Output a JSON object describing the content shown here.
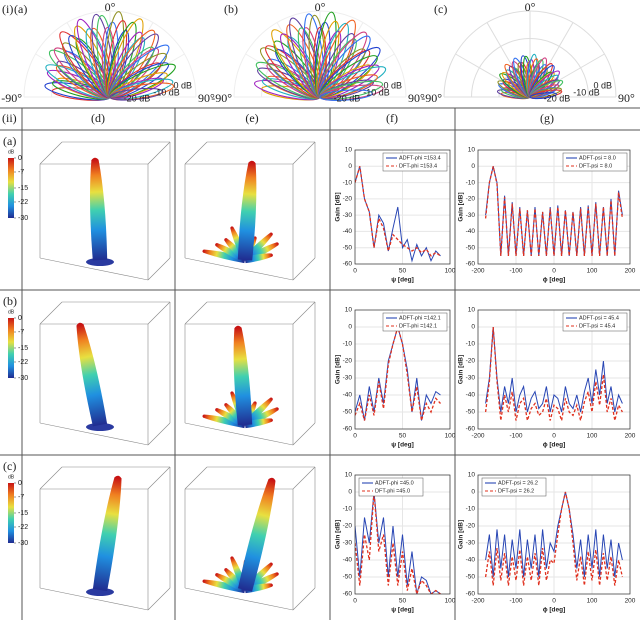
{
  "figure": {
    "part_i": "(i)",
    "part_ii": "(ii)",
    "columns": [
      "(d)",
      "(e)",
      "(f)",
      "(g)"
    ],
    "rows": [
      "(a)",
      "(b)",
      "(c)"
    ]
  },
  "colorbar": {
    "unit": "dB",
    "ticks": [
      0,
      -7,
      -15,
      -22,
      -30
    ]
  },
  "chart_data": [
    {
      "type": "polar",
      "label": "(a)",
      "top_label": "0°",
      "left_label": "-90°",
      "right_label": "90°",
      "ring_labels": [
        "0 dB",
        "-10 dB",
        "-20 dB"
      ]
    },
    {
      "type": "polar",
      "label": "(b)",
      "top_label": "0°",
      "left_label": "-90°",
      "right_label": "90°",
      "ring_labels": [
        "0 dB",
        "-10 dB",
        "-20 dB"
      ]
    },
    {
      "type": "polar",
      "label": "(c)",
      "top_label": "0°",
      "left_label": "-90°",
      "right_label": "90°",
      "ring_labels": [
        "0 dB",
        "-10 dB",
        "-20 dB"
      ]
    },
    {
      "type": "line",
      "xlabel": "ψ [deg]",
      "ylabel": "Gain [dB]",
      "xlim": [
        0,
        100
      ],
      "xticks": [
        0,
        50,
        100
      ],
      "ylim": [
        -60,
        10
      ],
      "yticks": [
        -60,
        -50,
        -40,
        -30,
        -20,
        -10,
        0,
        10
      ],
      "grid": true,
      "legend": "upper right",
      "x": [
        0,
        5,
        10,
        15,
        20,
        25,
        30,
        35,
        40,
        45,
        50,
        55,
        60,
        65,
        70,
        75,
        80,
        85,
        90
      ],
      "series": [
        {
          "name": "ADFT-phi =153.4",
          "color": "#2846b4",
          "dashed": false,
          "values": [
            -10,
            0,
            -20,
            -28,
            -50,
            -30,
            -35,
            -52,
            -38,
            -25,
            -50,
            -45,
            -58,
            -48,
            -55,
            -50,
            -58,
            -52,
            -55
          ]
        },
        {
          "name": "DFT-phi =153.4",
          "color": "#e0301e",
          "dashed": true,
          "values": [
            -10,
            0,
            -20,
            -28,
            -50,
            -32,
            -38,
            -52,
            -42,
            -45,
            -48,
            -50,
            -52,
            -50,
            -53,
            -51,
            -55,
            -53,
            -55
          ]
        }
      ]
    },
    {
      "type": "line",
      "xlabel": "ϕ [deg]",
      "ylabel": "Gain [dB]",
      "xlim": [
        -200,
        200
      ],
      "xticks": [
        -200,
        -100,
        0,
        100,
        200
      ],
      "ylim": [
        -60,
        10
      ],
      "yticks": [
        -60,
        -50,
        -40,
        -30,
        -20,
        -10,
        0,
        10
      ],
      "grid": true,
      "legend": "upper right",
      "x": [
        -180,
        -170,
        -160,
        -150,
        -140,
        -130,
        -120,
        -110,
        -100,
        -90,
        -80,
        -70,
        -60,
        -50,
        -40,
        -30,
        -20,
        -10,
        0,
        10,
        20,
        30,
        40,
        50,
        60,
        70,
        80,
        90,
        100,
        110,
        120,
        130,
        140,
        150,
        160,
        170,
        180
      ],
      "series": [
        {
          "name": "ADFT-psi = 8.0",
          "color": "#2846b4",
          "dashed": false,
          "values": [
            -30,
            -10,
            0,
            -10,
            -55,
            -18,
            -55,
            -22,
            -55,
            -25,
            -55,
            -27,
            -55,
            -25,
            -55,
            -28,
            -55,
            -25,
            -55,
            -24,
            -55,
            -27,
            -55,
            -28,
            -55,
            -25,
            -55,
            -24,
            -55,
            -22,
            -55,
            -25,
            -55,
            -20,
            -55,
            -15,
            -30
          ]
        },
        {
          "name": "DFT-psi = 8.0",
          "color": "#e0301e",
          "dashed": true,
          "values": [
            -32,
            -10,
            0,
            -11,
            -55,
            -19,
            -55,
            -23,
            -55,
            -26,
            -55,
            -27,
            -55,
            -26,
            -55,
            -28,
            -55,
            -26,
            -55,
            -25,
            -55,
            -27,
            -55,
            -28,
            -55,
            -26,
            -55,
            -25,
            -55,
            -23,
            -55,
            -25,
            -55,
            -21,
            -55,
            -16,
            -32
          ]
        }
      ]
    },
    {
      "type": "line",
      "xlabel": "ψ [deg]",
      "ylabel": "Gain [dB]",
      "xlim": [
        0,
        100
      ],
      "xticks": [
        0,
        50,
        100
      ],
      "ylim": [
        -60,
        10
      ],
      "yticks": [
        -60,
        -50,
        -40,
        -30,
        -20,
        -10,
        0,
        10
      ],
      "grid": true,
      "legend": "upper right",
      "x": [
        0,
        5,
        10,
        15,
        20,
        25,
        30,
        35,
        40,
        45,
        50,
        55,
        60,
        65,
        70,
        75,
        80,
        85,
        90
      ],
      "series": [
        {
          "name": "ADFT-phi =142.1",
          "color": "#2846b4",
          "dashed": false,
          "values": [
            -50,
            -40,
            -55,
            -35,
            -50,
            -30,
            -45,
            -20,
            -10,
            0,
            -10,
            -25,
            -50,
            -30,
            -55,
            -40,
            -45,
            -38,
            -40
          ]
        },
        {
          "name": "DFT-phi =142.1",
          "color": "#e0301e",
          "dashed": true,
          "values": [
            -52,
            -45,
            -55,
            -40,
            -52,
            -32,
            -48,
            -22,
            -10,
            0,
            -10,
            -28,
            -50,
            -35,
            -55,
            -45,
            -50,
            -42,
            -45
          ]
        }
      ]
    },
    {
      "type": "line",
      "xlabel": "ϕ [deg]",
      "ylabel": "Gain [dB]",
      "xlim": [
        -200,
        200
      ],
      "xticks": [
        -200,
        -100,
        0,
        100,
        200
      ],
      "ylim": [
        -60,
        10
      ],
      "yticks": [
        -60,
        -50,
        -40,
        -30,
        -20,
        -10,
        0,
        10
      ],
      "grid": true,
      "legend": "upper right",
      "x": [
        -180,
        -170,
        -160,
        -150,
        -140,
        -130,
        -120,
        -110,
        -100,
        -90,
        -80,
        -70,
        -60,
        -50,
        -40,
        -30,
        -20,
        -10,
        0,
        10,
        20,
        30,
        40,
        50,
        60,
        70,
        80,
        90,
        100,
        110,
        120,
        130,
        140,
        150,
        160,
        170,
        180
      ],
      "series": [
        {
          "name": "ADFT-psi = 45.4",
          "color": "#2846b4",
          "dashed": false,
          "values": [
            -45,
            -30,
            0,
            -30,
            -50,
            -35,
            -45,
            -30,
            -50,
            -40,
            -35,
            -50,
            -42,
            -38,
            -48,
            -45,
            -35,
            -50,
            -40,
            -42,
            -50,
            -35,
            -45,
            -48,
            -40,
            -50,
            -38,
            -30,
            -45,
            -25,
            -40,
            -20,
            -45,
            -35,
            -50,
            -40,
            -45
          ]
        },
        {
          "name": "DFT-psi = 45.4",
          "color": "#e0301e",
          "dashed": true,
          "values": [
            -50,
            -32,
            0,
            -32,
            -55,
            -40,
            -50,
            -38,
            -55,
            -45,
            -42,
            -55,
            -48,
            -45,
            -52,
            -50,
            -42,
            -55,
            -46,
            -48,
            -55,
            -42,
            -50,
            -52,
            -46,
            -55,
            -44,
            -38,
            -50,
            -32,
            -46,
            -28,
            -50,
            -42,
            -55,
            -46,
            -50
          ]
        }
      ]
    },
    {
      "type": "line",
      "xlabel": "ψ [deg]",
      "ylabel": "Gain [dB]",
      "xlim": [
        0,
        100
      ],
      "xticks": [
        0,
        50,
        100
      ],
      "ylim": [
        -60,
        10
      ],
      "yticks": [
        -60,
        -50,
        -40,
        -30,
        -20,
        -10,
        0,
        10
      ],
      "grid": true,
      "legend": "upper left",
      "x": [
        0,
        5,
        10,
        15,
        20,
        25,
        30,
        35,
        40,
        45,
        50,
        55,
        60,
        65,
        70,
        75,
        80,
        85,
        90
      ],
      "series": [
        {
          "name": "ADFT-phi =45.0",
          "color": "#2846b4",
          "dashed": false,
          "values": [
            -20,
            -50,
            -15,
            -30,
            0,
            -30,
            -15,
            -50,
            -20,
            -50,
            -25,
            -55,
            -35,
            -60,
            -50,
            -52,
            -60,
            -58,
            -60
          ]
        },
        {
          "name": "DFT-phi =45.0",
          "color": "#e0301e",
          "dashed": true,
          "values": [
            -30,
            -55,
            -25,
            -40,
            0,
            -35,
            -25,
            -55,
            -30,
            -55,
            -35,
            -58,
            -45,
            -60,
            -52,
            -55,
            -60,
            -58,
            -60
          ]
        }
      ]
    },
    {
      "type": "line",
      "xlabel": "ϕ [deg]",
      "ylabel": "Gain [dB]",
      "xlim": [
        -200,
        200
      ],
      "xticks": [
        -200,
        -100,
        0,
        100,
        200
      ],
      "ylim": [
        -60,
        10
      ],
      "yticks": [
        -60,
        -50,
        -40,
        -30,
        -20,
        -10,
        0,
        10
      ],
      "grid": true,
      "legend": "upper left",
      "x": [
        -180,
        -170,
        -160,
        -150,
        -140,
        -130,
        -120,
        -110,
        -100,
        -90,
        -80,
        -70,
        -60,
        -50,
        -40,
        -30,
        -20,
        -10,
        0,
        10,
        20,
        30,
        40,
        50,
        60,
        70,
        80,
        90,
        100,
        110,
        120,
        130,
        140,
        150,
        160,
        170,
        180
      ],
      "series": [
        {
          "name": "ADFT-psi = 26.2",
          "color": "#2846b4",
          "dashed": false,
          "values": [
            -40,
            -25,
            -50,
            -22,
            -45,
            -25,
            -50,
            -28,
            -45,
            -22,
            -50,
            -28,
            -45,
            -25,
            -50,
            -22,
            -45,
            -30,
            -35,
            -20,
            -10,
            0,
            -10,
            -25,
            -45,
            -28,
            -50,
            -25,
            -45,
            -22,
            -50,
            -25,
            -45,
            -28,
            -50,
            -30,
            -40
          ]
        },
        {
          "name": "DFT-psi = 26.2",
          "color": "#e0301e",
          "dashed": true,
          "values": [
            -50,
            -35,
            -55,
            -33,
            -52,
            -36,
            -55,
            -38,
            -52,
            -34,
            -55,
            -38,
            -52,
            -36,
            -55,
            -33,
            -52,
            -40,
            -42,
            -25,
            -10,
            0,
            -10,
            -30,
            -52,
            -38,
            -55,
            -35,
            -52,
            -34,
            -55,
            -36,
            -52,
            -38,
            -55,
            -40,
            -50
          ]
        }
      ]
    }
  ]
}
